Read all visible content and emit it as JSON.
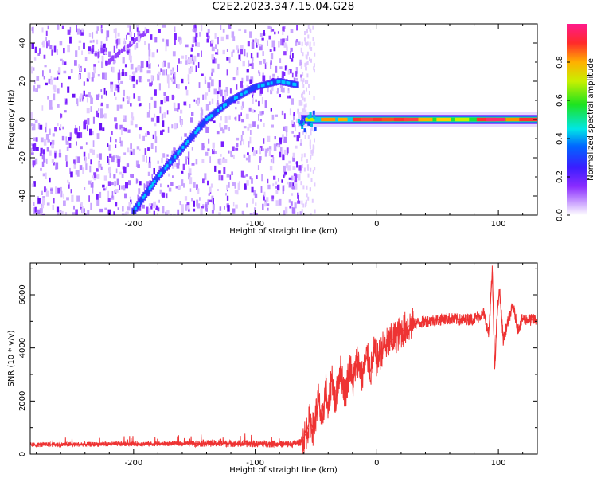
{
  "title": "C2E2.2023.347.15.04.G28",
  "chart_data": [
    {
      "type": "heatmap",
      "name": "spectrogram",
      "xlabel": "Height of straight line (km)",
      "ylabel": "Frequency (Hz)",
      "xlim": [
        -285,
        132
      ],
      "ylim": [
        -50,
        50
      ],
      "xticks": [
        -200,
        -100,
        0,
        100
      ],
      "xticklabels": [
        "-200",
        "-100",
        "0",
        "100"
      ],
      "yticks": [
        -40,
        -20,
        0,
        20,
        40
      ],
      "yticklabels": [
        "-40",
        "-20",
        "0",
        "20",
        "40"
      ],
      "noise_region_x": [
        -285,
        -55
      ],
      "signal_track": {
        "description_points": [
          [
            -200,
            -48
          ],
          [
            -180,
            -30
          ],
          [
            -160,
            -15
          ],
          [
            -140,
            0
          ],
          [
            -120,
            10
          ],
          [
            -100,
            17
          ],
          [
            -80,
            20
          ],
          [
            -65,
            18
          ]
        ]
      },
      "carrier_line": {
        "x_range": [
          -65,
          132
        ],
        "frequency": 0
      },
      "colorbar": {
        "label": "Normalized spectral amplitude",
        "range": [
          0.0,
          1.0
        ],
        "ticks": [
          0.0,
          0.2,
          0.4,
          0.6,
          0.8
        ],
        "ticklabels": [
          "0.0",
          "0.2",
          "0.4",
          "0.6",
          "0.8"
        ]
      }
    },
    {
      "type": "line",
      "name": "snr",
      "xlabel": "Height of straight line (km)",
      "ylabel": "SNR (10 * v/v)",
      "xlim": [
        -285,
        132
      ],
      "ylim": [
        0,
        7200
      ],
      "xticks": [
        -200,
        -100,
        0,
        100
      ],
      "xticklabels": [
        "-200",
        "-100",
        "0",
        "100"
      ],
      "yticks": [
        0,
        2000,
        4000,
        6000
      ],
      "yticklabels": [
        "0",
        "2000",
        "4000",
        "6000"
      ],
      "line_color": "#ee3333",
      "series": [
        {
          "name": "SNR",
          "x": [
            -285,
            -260,
            -240,
            -220,
            -200,
            -180,
            -160,
            -140,
            -120,
            -100,
            -80,
            -70,
            -62,
            -58,
            -55,
            -52,
            -48,
            -45,
            -42,
            -40,
            -37,
            -34,
            -30,
            -26,
            -22,
            -20,
            -16,
            -12,
            -8,
            -5,
            -2,
            0,
            5,
            10,
            15,
            20,
            25,
            30,
            40,
            50,
            60,
            70,
            80,
            88,
            92,
            95,
            97,
            99,
            101,
            104,
            108,
            112,
            116,
            120,
            126,
            132
          ],
          "y": [
            350,
            360,
            370,
            380,
            390,
            390,
            400,
            410,
            400,
            390,
            380,
            380,
            450,
            800,
            1300,
            900,
            2100,
            1100,
            2600,
            1500,
            3000,
            1900,
            3300,
            2200,
            3400,
            2600,
            3600,
            2900,
            3700,
            3100,
            3900,
            3500,
            4000,
            4200,
            4400,
            4600,
            4800,
            4900,
            5000,
            5050,
            5100,
            5050,
            5100,
            5300,
            4500,
            6900,
            3200,
            5300,
            6200,
            4300,
            5000,
            5600,
            4700,
            5100,
            5050,
            5050
          ]
        }
      ]
    }
  ]
}
